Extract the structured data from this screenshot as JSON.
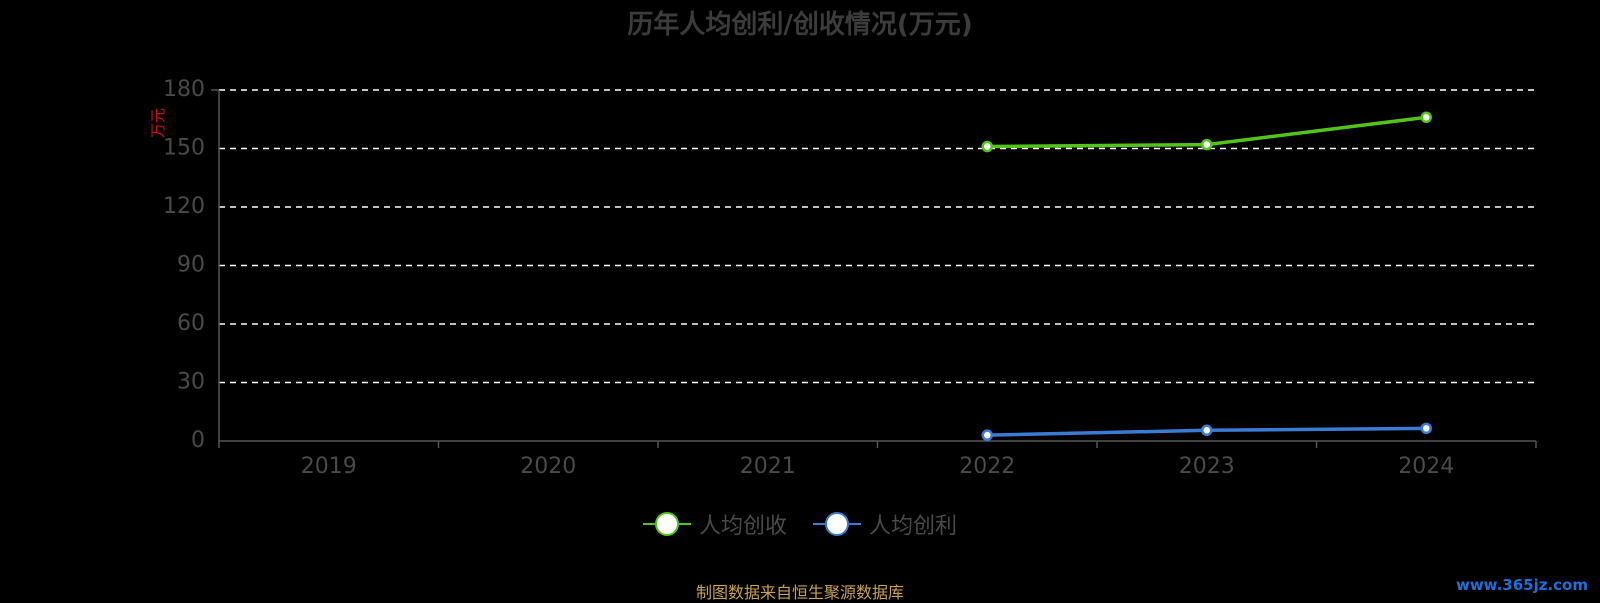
{
  "colors": {
    "revenue": "#52c41a",
    "profit": "#3a7bd5",
    "grid": "#ffffff",
    "axis": "#555555"
  },
  "chart_data": {
    "type": "line",
    "title": "历年人均创利/创收情况(万元)",
    "ylabel": "万元",
    "xlabel": "",
    "categories": [
      "2019",
      "2020",
      "2021",
      "2022",
      "2023",
      "2024"
    ],
    "y_ticks": [
      "0",
      "30",
      "60",
      "90",
      "120",
      "150",
      "180"
    ],
    "ylim": [
      0,
      180
    ],
    "grid": true,
    "legend_position": "bottom",
    "series": [
      {
        "name": "人均创收",
        "values": [
          null,
          null,
          null,
          151,
          152,
          166
        ]
      },
      {
        "name": "人均创利",
        "values": [
          null,
          null,
          null,
          3,
          5.5,
          6.5
        ]
      }
    ]
  },
  "footer": {
    "source": "制图数据来自恒生聚源数据库",
    "watermark": "www.365jz.com"
  }
}
